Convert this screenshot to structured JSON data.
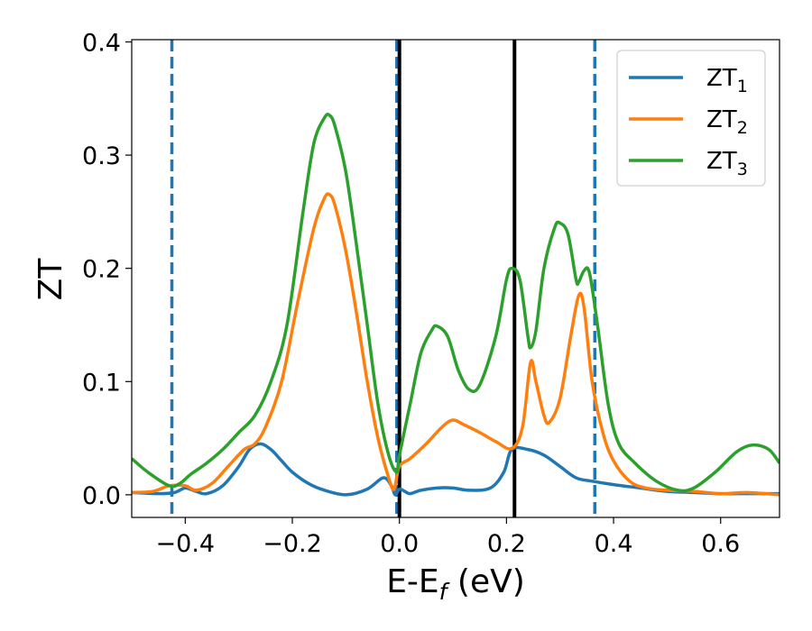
{
  "chart_data": {
    "type": "line",
    "xlabel": "E-E",
    "xlabel_sub": "f",
    "xlabel_unit": " (eV)",
    "ylabel": "ZT",
    "xlim": [
      -0.5,
      0.71
    ],
    "ylim": [
      -0.02,
      0.402
    ],
    "x_ticks": [
      -0.4,
      -0.2,
      0.0,
      0.2,
      0.4,
      0.6
    ],
    "x_tick_labels": [
      "−0.4",
      "−0.2",
      "0.0",
      "0.2",
      "0.4",
      "0.6"
    ],
    "y_ticks": [
      0.0,
      0.1,
      0.2,
      0.3,
      0.4
    ],
    "y_tick_labels": [
      "0.0",
      "0.1",
      "0.2",
      "0.3",
      "0.4"
    ],
    "grid": false,
    "legend_position": "top-right",
    "vertical_lines": [
      {
        "x": -0.425,
        "style": "dashed",
        "color": "#1f77b4"
      },
      {
        "x": -0.005,
        "style": "dashed",
        "color": "#1f77b4"
      },
      {
        "x": 0.0,
        "style": "solid",
        "color": "#000000"
      },
      {
        "x": 0.215,
        "style": "solid",
        "color": "#000000"
      },
      {
        "x": 0.365,
        "style": "dashed",
        "color": "#1f77b4"
      }
    ],
    "series": [
      {
        "name": "ZT",
        "sub": "1",
        "color": "#1f77b4",
        "points": [
          [
            -0.5,
            0.002
          ],
          [
            -0.45,
            0.001
          ],
          [
            -0.42,
            0.002
          ],
          [
            -0.4,
            0.006
          ],
          [
            -0.38,
            0.003
          ],
          [
            -0.36,
            0.001
          ],
          [
            -0.33,
            0.008
          ],
          [
            -0.3,
            0.025
          ],
          [
            -0.28,
            0.04
          ],
          [
            -0.26,
            0.045
          ],
          [
            -0.24,
            0.04
          ],
          [
            -0.22,
            0.03
          ],
          [
            -0.2,
            0.02
          ],
          [
            -0.17,
            0.01
          ],
          [
            -0.14,
            0.004
          ],
          [
            -0.1,
            0.0
          ],
          [
            -0.06,
            0.005
          ],
          [
            -0.03,
            0.015
          ],
          [
            -0.015,
            0.008
          ],
          [
            -0.008,
            0.0
          ],
          [
            0.0,
            0.005
          ],
          [
            0.01,
            0.003
          ],
          [
            0.02,
            0.001
          ],
          [
            0.04,
            0.004
          ],
          [
            0.07,
            0.006
          ],
          [
            0.1,
            0.006
          ],
          [
            0.13,
            0.004
          ],
          [
            0.17,
            0.006
          ],
          [
            0.195,
            0.02
          ],
          [
            0.21,
            0.04
          ],
          [
            0.24,
            0.04
          ],
          [
            0.27,
            0.035
          ],
          [
            0.3,
            0.025
          ],
          [
            0.33,
            0.015
          ],
          [
            0.36,
            0.012
          ],
          [
            0.4,
            0.009
          ],
          [
            0.45,
            0.006
          ],
          [
            0.5,
            0.003
          ],
          [
            0.55,
            0.002
          ],
          [
            0.6,
            0.001
          ],
          [
            0.65,
            0.001
          ],
          [
            0.71,
            0.001
          ]
        ]
      },
      {
        "name": "ZT",
        "sub": "2",
        "color": "#ff7f0e",
        "points": [
          [
            -0.5,
            0.002
          ],
          [
            -0.46,
            0.003
          ],
          [
            -0.43,
            0.008
          ],
          [
            -0.4,
            0.008
          ],
          [
            -0.38,
            0.004
          ],
          [
            -0.35,
            0.01
          ],
          [
            -0.32,
            0.025
          ],
          [
            -0.29,
            0.04
          ],
          [
            -0.27,
            0.045
          ],
          [
            -0.25,
            0.06
          ],
          [
            -0.22,
            0.1
          ],
          [
            -0.19,
            0.17
          ],
          [
            -0.16,
            0.235
          ],
          [
            -0.14,
            0.262
          ],
          [
            -0.13,
            0.265
          ],
          [
            -0.12,
            0.255
          ],
          [
            -0.1,
            0.215
          ],
          [
            -0.08,
            0.16
          ],
          [
            -0.06,
            0.1
          ],
          [
            -0.04,
            0.05
          ],
          [
            -0.02,
            0.015
          ],
          [
            -0.01,
            0.005
          ],
          [
            0.0,
            0.025
          ],
          [
            0.02,
            0.032
          ],
          [
            0.05,
            0.045
          ],
          [
            0.08,
            0.06
          ],
          [
            0.1,
            0.066
          ],
          [
            0.12,
            0.062
          ],
          [
            0.15,
            0.055
          ],
          [
            0.18,
            0.047
          ],
          [
            0.21,
            0.041
          ],
          [
            0.23,
            0.06
          ],
          [
            0.245,
            0.117
          ],
          [
            0.255,
            0.1
          ],
          [
            0.27,
            0.07
          ],
          [
            0.28,
            0.064
          ],
          [
            0.3,
            0.085
          ],
          [
            0.32,
            0.14
          ],
          [
            0.335,
            0.176
          ],
          [
            0.345,
            0.165
          ],
          [
            0.36,
            0.1
          ],
          [
            0.38,
            0.055
          ],
          [
            0.4,
            0.03
          ],
          [
            0.43,
            0.012
          ],
          [
            0.46,
            0.006
          ],
          [
            0.5,
            0.004
          ],
          [
            0.55,
            0.003
          ],
          [
            0.6,
            0.001
          ],
          [
            0.65,
            0.002
          ],
          [
            0.71,
            0.0
          ]
        ]
      },
      {
        "name": "ZT",
        "sub": "3",
        "color": "#2ca02c",
        "points": [
          [
            -0.5,
            0.032
          ],
          [
            -0.47,
            0.02
          ],
          [
            -0.43,
            0.008
          ],
          [
            -0.41,
            0.01
          ],
          [
            -0.39,
            0.018
          ],
          [
            -0.36,
            0.028
          ],
          [
            -0.33,
            0.04
          ],
          [
            -0.3,
            0.055
          ],
          [
            -0.27,
            0.07
          ],
          [
            -0.24,
            0.1
          ],
          [
            -0.21,
            0.15
          ],
          [
            -0.18,
            0.25
          ],
          [
            -0.16,
            0.31
          ],
          [
            -0.14,
            0.333
          ],
          [
            -0.13,
            0.335
          ],
          [
            -0.12,
            0.325
          ],
          [
            -0.1,
            0.285
          ],
          [
            -0.08,
            0.22
          ],
          [
            -0.06,
            0.15
          ],
          [
            -0.04,
            0.08
          ],
          [
            -0.02,
            0.035
          ],
          [
            -0.005,
            0.02
          ],
          [
            0.0,
            0.035
          ],
          [
            0.02,
            0.08
          ],
          [
            0.04,
            0.125
          ],
          [
            0.06,
            0.145
          ],
          [
            0.07,
            0.149
          ],
          [
            0.09,
            0.14
          ],
          [
            0.11,
            0.11
          ],
          [
            0.13,
            0.093
          ],
          [
            0.15,
            0.097
          ],
          [
            0.18,
            0.14
          ],
          [
            0.2,
            0.19
          ],
          [
            0.21,
            0.2
          ],
          [
            0.225,
            0.19
          ],
          [
            0.24,
            0.14
          ],
          [
            0.245,
            0.13
          ],
          [
            0.255,
            0.145
          ],
          [
            0.27,
            0.2
          ],
          [
            0.29,
            0.236
          ],
          [
            0.3,
            0.24
          ],
          [
            0.315,
            0.23
          ],
          [
            0.33,
            0.19
          ],
          [
            0.335,
            0.188
          ],
          [
            0.345,
            0.198
          ],
          [
            0.355,
            0.196
          ],
          [
            0.37,
            0.15
          ],
          [
            0.39,
            0.08
          ],
          [
            0.41,
            0.045
          ],
          [
            0.44,
            0.028
          ],
          [
            0.48,
            0.012
          ],
          [
            0.52,
            0.004
          ],
          [
            0.55,
            0.006
          ],
          [
            0.59,
            0.02
          ],
          [
            0.63,
            0.038
          ],
          [
            0.66,
            0.044
          ],
          [
            0.69,
            0.04
          ],
          [
            0.71,
            0.028
          ]
        ]
      }
    ]
  }
}
